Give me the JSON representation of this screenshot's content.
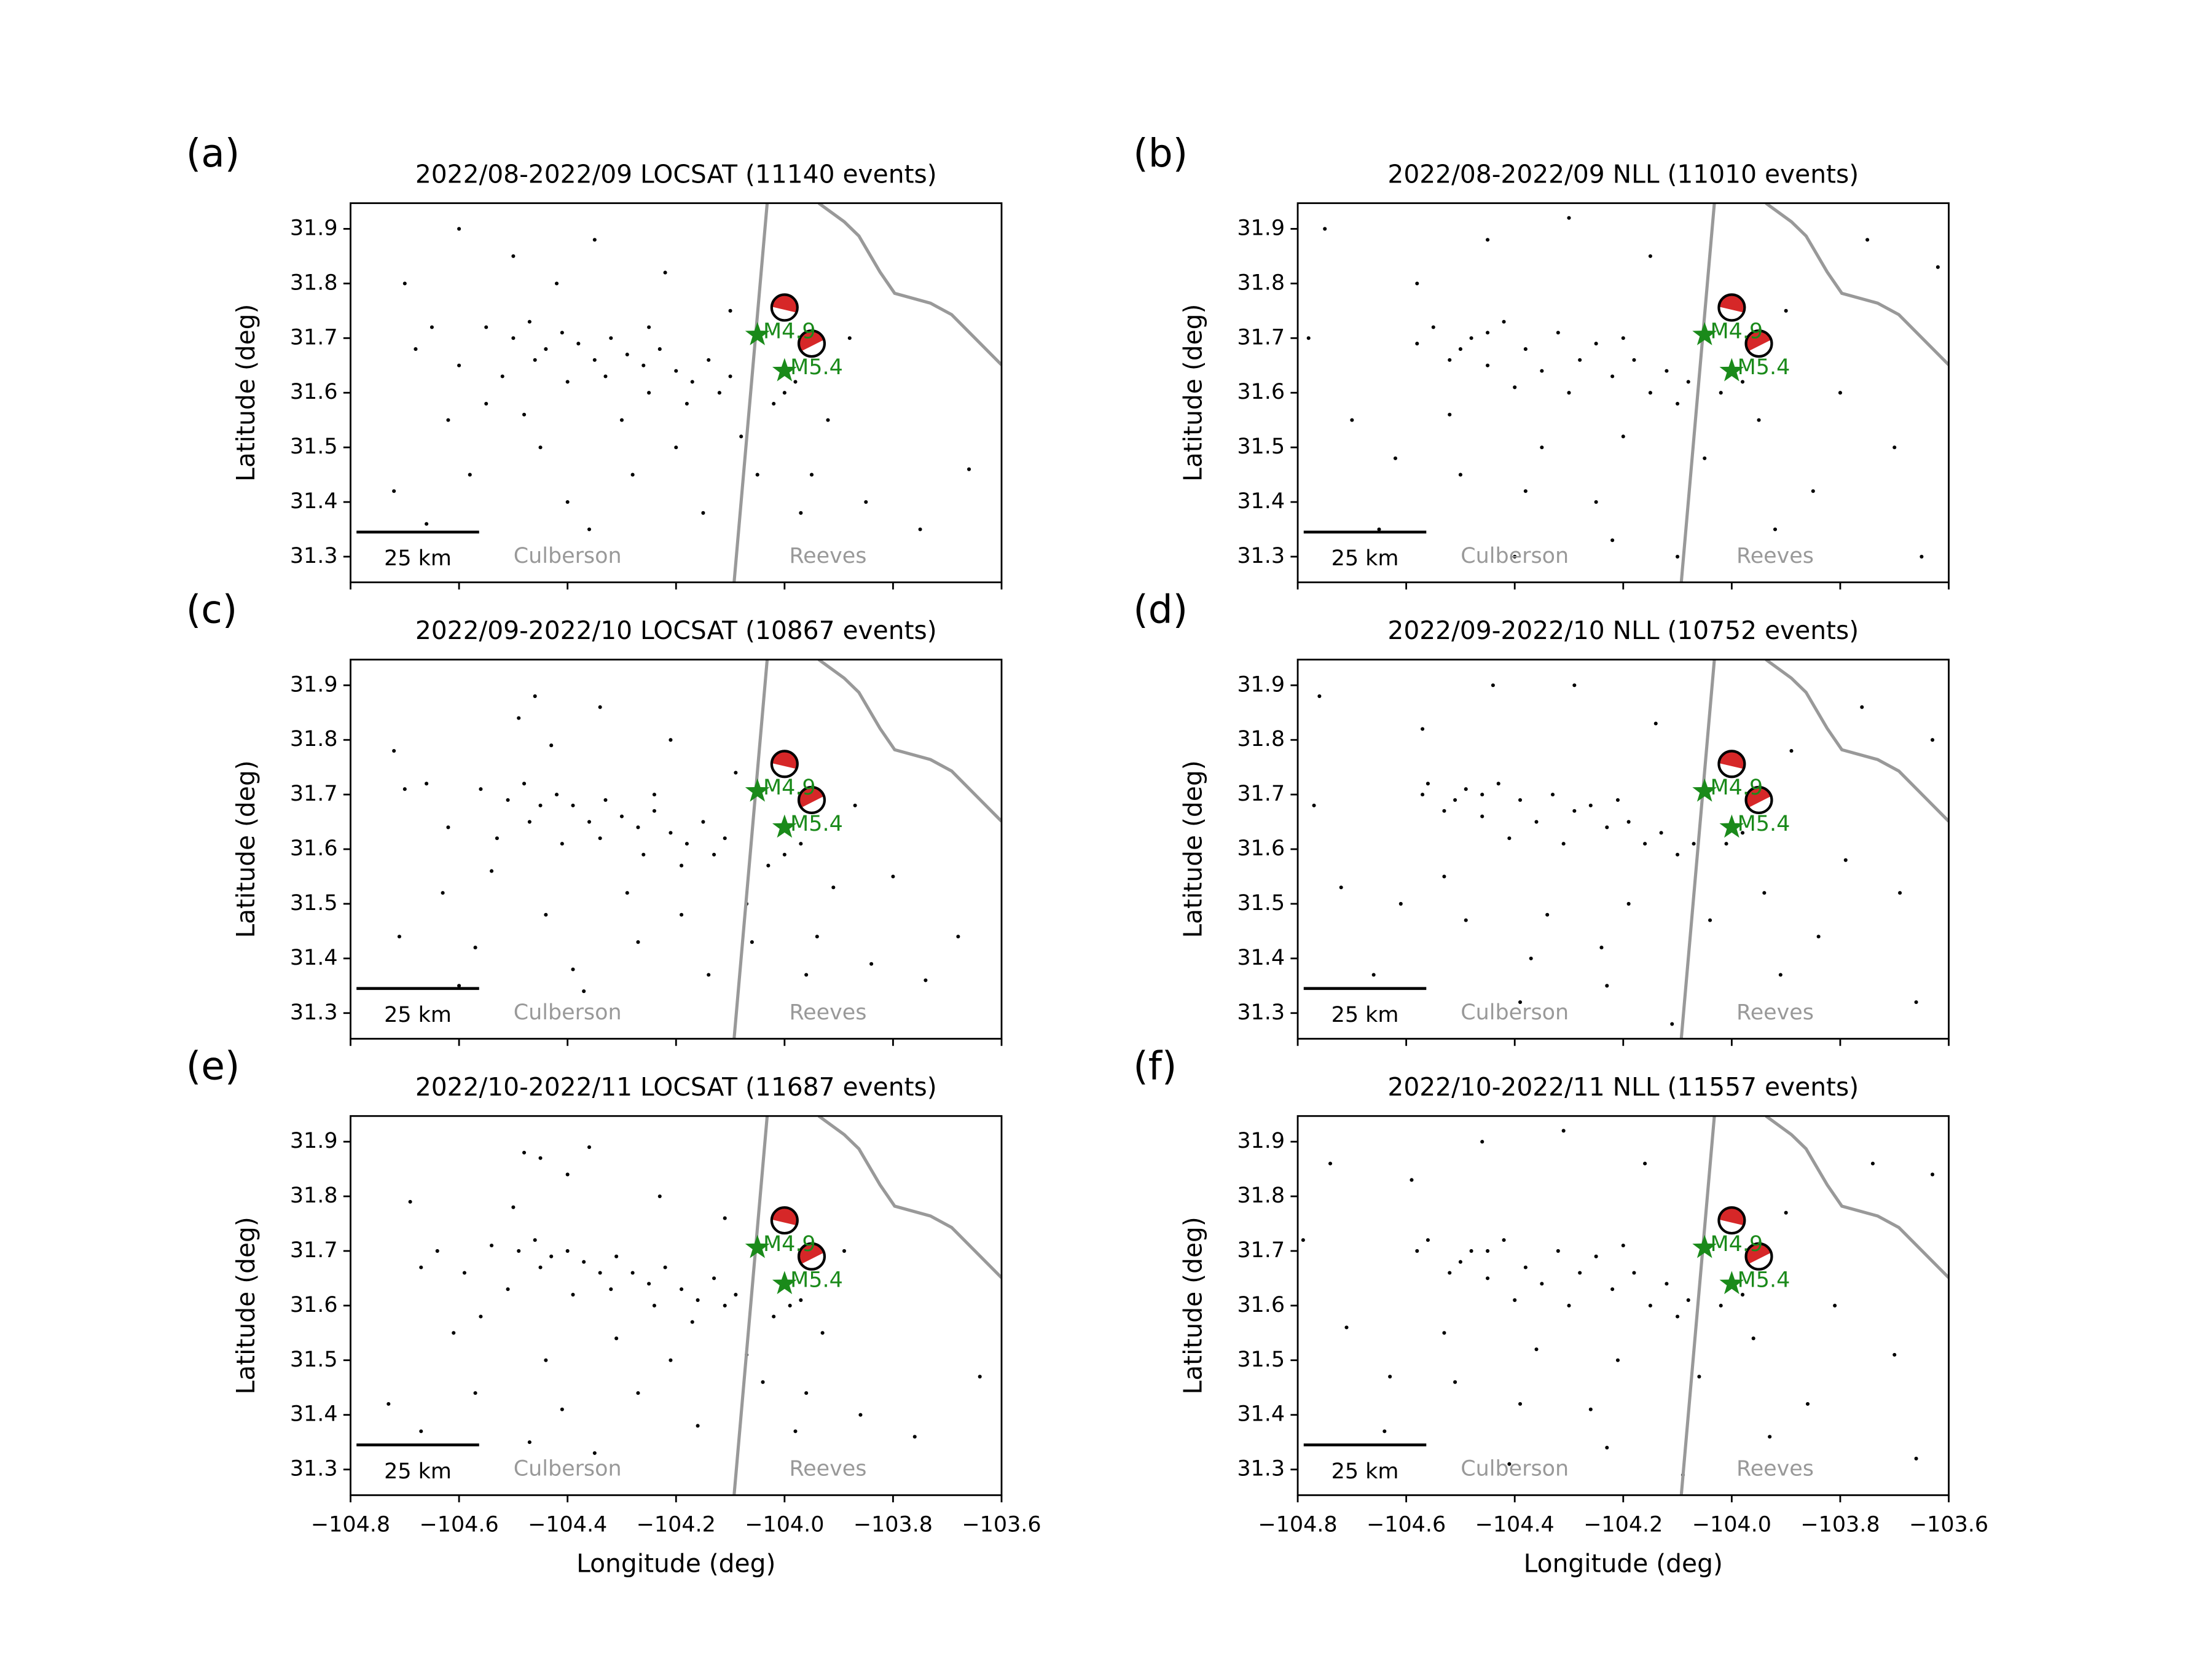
{
  "overlay": {
    "county_line": {
      "x": [
        -104.032,
        -104.093
      ],
      "y": [
        31.947,
        31.253
      ],
      "color": "#999999"
    },
    "state_line": {
      "x": [
        -103.937,
        -103.89,
        -103.863,
        -103.824,
        -103.797,
        -103.731,
        -103.692,
        -103.639,
        -103.6
      ],
      "y": [
        31.947,
        31.913,
        31.887,
        31.821,
        31.782,
        31.764,
        31.743,
        31.69,
        31.651
      ],
      "color": "#999999"
    },
    "stars": {
      "x": [
        -104.05,
        -104.0
      ],
      "y": [
        31.706,
        31.64
      ],
      "labels": [
        "M4.9",
        "M5.4"
      ],
      "color": "#1a8a1a"
    },
    "beachballs": {
      "x": [
        -104.0,
        -103.95
      ],
      "y": [
        31.756,
        31.69
      ],
      "color": "#d62728"
    },
    "scale_bar": {
      "x": [
        -104.789,
        -104.563
      ],
      "y": 31.345,
      "label": "25 km"
    },
    "counties": {
      "x": [
        -104.4,
        -103.92
      ],
      "y": 31.3,
      "labels": [
        "Culberson",
        "Reeves"
      ],
      "color": "#999999"
    }
  },
  "chart_data": [
    {
      "type": "scatter",
      "panel": "(a)",
      "title": "2022/08-2022/09 LOCSAT (11140 events)",
      "ylabel": "Latitude (deg)",
      "xlim": [
        -104.8,
        -103.6
      ],
      "ylim": [
        31.253,
        31.947
      ],
      "xticks": [
        -104.8,
        -104.6,
        -104.4,
        -104.2,
        -104.0,
        -103.8,
        -103.6
      ],
      "yticks": [
        31.3,
        31.4,
        31.5,
        31.6,
        31.7,
        31.8,
        31.9
      ],
      "color": "#000000",
      "x": [
        -104.55,
        -104.5,
        -104.47,
        -104.44,
        -104.41,
        -104.38,
        -104.35,
        -104.32,
        -104.29,
        -104.26,
        -104.23,
        -104.2,
        -104.17,
        -104.14,
        -104.12,
        -104.1,
        -104.6,
        -104.52,
        -104.46,
        -104.4,
        -104.33,
        -104.25,
        -104.18,
        -104.02,
        -104.0,
        -103.98,
        -104.65,
        -104.68,
        -104.7,
        -104.62,
        -104.58,
        -104.5,
        -104.45,
        -104.4,
        -104.35,
        -104.3,
        -104.28,
        -104.22,
        -104.2,
        -104.15,
        -104.1,
        -104.08,
        -103.95,
        -103.92,
        -103.88,
        -103.85,
        -103.75,
        -103.66,
        -104.72,
        -104.66,
        -104.55,
        -104.42,
        -104.36,
        -104.25,
        -104.05,
        -103.97,
        -104.6,
        -104.48
      ],
      "y": [
        31.72,
        31.7,
        31.73,
        31.68,
        31.71,
        31.69,
        31.66,
        31.7,
        31.67,
        31.65,
        31.68,
        31.64,
        31.62,
        31.66,
        31.6,
        31.63,
        31.65,
        31.63,
        31.66,
        31.62,
        31.63,
        31.6,
        31.58,
        31.58,
        31.6,
        31.62,
        31.72,
        31.68,
        31.8,
        31.55,
        31.45,
        31.85,
        31.5,
        31.4,
        31.88,
        31.55,
        31.45,
        31.82,
        31.5,
        31.38,
        31.75,
        31.52,
        31.45,
        31.55,
        31.7,
        31.4,
        31.35,
        31.46,
        31.42,
        31.36,
        31.58,
        31.8,
        31.35,
        31.72,
        31.45,
        31.38,
        31.9,
        31.56
      ]
    },
    {
      "type": "scatter",
      "panel": "(b)",
      "title": "2022/08-2022/09 NLL (11010 events)",
      "ylabel": "Latitude (deg)",
      "xlim": [
        -104.8,
        -103.6
      ],
      "ylim": [
        31.253,
        31.947
      ],
      "xticks": [
        -104.8,
        -104.6,
        -104.4,
        -104.2,
        -104.0,
        -103.8,
        -103.6
      ],
      "yticks": [
        31.3,
        31.4,
        31.5,
        31.6,
        31.7,
        31.8,
        31.9
      ],
      "color": "#000000",
      "x": [
        -104.55,
        -104.52,
        -104.48,
        -104.45,
        -104.42,
        -104.38,
        -104.35,
        -104.32,
        -104.28,
        -104.25,
        -104.22,
        -104.18,
        -104.15,
        -104.12,
        -104.1,
        -104.3,
        -104.4,
        -104.5,
        -104.58,
        -104.02,
        -103.98,
        -104.08,
        -104.2,
        -104.45,
        -104.75,
        -104.7,
        -104.65,
        -104.58,
        -104.5,
        -104.45,
        -104.4,
        -104.35,
        -104.3,
        -104.25,
        -104.2,
        -104.15,
        -104.1,
        -104.05,
        -103.95,
        -103.9,
        -103.85,
        -103.8,
        -103.75,
        -103.7,
        -103.65,
        -103.62,
        -104.78,
        -104.62,
        -104.38,
        -104.22,
        -103.92,
        -104.52
      ],
      "y": [
        31.72,
        31.66,
        31.7,
        31.65,
        31.73,
        31.68,
        31.64,
        31.71,
        31.66,
        31.69,
        31.63,
        31.66,
        31.6,
        31.64,
        31.58,
        31.6,
        31.61,
        31.68,
        31.69,
        31.6,
        31.62,
        31.62,
        31.7,
        31.71,
        31.9,
        31.55,
        31.35,
        31.8,
        31.45,
        31.88,
        31.3,
        31.5,
        31.92,
        31.4,
        31.52,
        31.85,
        31.3,
        31.48,
        31.55,
        31.75,
        31.42,
        31.6,
        31.88,
        31.5,
        31.3,
        31.83,
        31.7,
        31.48,
        31.42,
        31.33,
        31.35,
        31.56
      ]
    },
    {
      "type": "scatter",
      "panel": "(c)",
      "title": "2022/09-2022/10 LOCSAT (10867 events)",
      "ylabel": "Latitude (deg)",
      "xlim": [
        -104.8,
        -103.6
      ],
      "ylim": [
        31.253,
        31.947
      ],
      "xticks": [
        -104.8,
        -104.6,
        -104.4,
        -104.2,
        -104.0,
        -103.8,
        -103.6
      ],
      "yticks": [
        31.3,
        31.4,
        31.5,
        31.6,
        31.7,
        31.8,
        31.9
      ],
      "color": "#000000",
      "x": [
        -104.56,
        -104.51,
        -104.48,
        -104.45,
        -104.42,
        -104.39,
        -104.36,
        -104.33,
        -104.3,
        -104.27,
        -104.24,
        -104.21,
        -104.18,
        -104.15,
        -104.13,
        -104.11,
        -104.62,
        -104.53,
        -104.47,
        -104.41,
        -104.34,
        -104.26,
        -104.19,
        -104.03,
        -104.0,
        -103.97,
        -104.66,
        -104.7,
        -104.72,
        -104.63,
        -104.57,
        -104.49,
        -104.44,
        -104.39,
        -104.34,
        -104.29,
        -104.27,
        -104.21,
        -104.19,
        -104.14,
        -104.09,
        -104.07,
        -103.94,
        -103.91,
        -103.87,
        -103.84,
        -103.74,
        -103.68,
        -104.71,
        -104.6,
        -104.54,
        -104.43,
        -104.37,
        -104.24,
        -104.06,
        -103.96,
        -104.46,
        -103.8
      ],
      "y": [
        31.71,
        31.69,
        31.72,
        31.68,
        31.7,
        31.68,
        31.65,
        31.69,
        31.66,
        31.64,
        31.67,
        31.63,
        31.61,
        31.65,
        31.59,
        31.62,
        31.64,
        31.62,
        31.65,
        31.61,
        31.62,
        31.59,
        31.57,
        31.57,
        31.59,
        31.61,
        31.72,
        31.71,
        31.78,
        31.52,
        31.42,
        31.84,
        31.48,
        31.38,
        31.86,
        31.52,
        31.43,
        31.8,
        31.48,
        31.37,
        31.74,
        31.5,
        31.44,
        31.53,
        31.68,
        31.39,
        31.36,
        31.44,
        31.44,
        31.35,
        31.56,
        31.79,
        31.34,
        31.7,
        31.43,
        31.37,
        31.88,
        31.55
      ]
    },
    {
      "type": "scatter",
      "panel": "(d)",
      "title": "2022/09-2022/10 NLL (10752 events)",
      "ylabel": "Latitude (deg)",
      "xlim": [
        -104.8,
        -103.6
      ],
      "ylim": [
        31.253,
        31.947
      ],
      "xticks": [
        -104.8,
        -104.6,
        -104.4,
        -104.2,
        -104.0,
        -103.8,
        -103.6
      ],
      "yticks": [
        31.3,
        31.4,
        31.5,
        31.6,
        31.7,
        31.8,
        31.9
      ],
      "color": "#000000",
      "x": [
        -104.56,
        -104.53,
        -104.49,
        -104.46,
        -104.43,
        -104.39,
        -104.36,
        -104.33,
        -104.29,
        -104.26,
        -104.23,
        -104.19,
        -104.16,
        -104.13,
        -104.1,
        -104.31,
        -104.41,
        -104.51,
        -104.57,
        -104.01,
        -103.98,
        -104.07,
        -104.21,
        -104.46,
        -104.76,
        -104.72,
        -104.66,
        -104.57,
        -104.49,
        -104.44,
        -104.39,
        -104.34,
        -104.29,
        -104.24,
        -104.19,
        -104.14,
        -104.11,
        -104.04,
        -103.94,
        -103.89,
        -103.84,
        -103.79,
        -103.76,
        -103.69,
        -103.66,
        -103.63,
        -104.77,
        -104.61,
        -104.37,
        -104.23,
        -103.91,
        -104.53
      ],
      "y": [
        31.72,
        31.67,
        31.71,
        31.66,
        31.72,
        31.69,
        31.65,
        31.7,
        31.67,
        31.68,
        31.64,
        31.65,
        31.61,
        31.63,
        31.59,
        31.61,
        31.62,
        31.69,
        31.7,
        31.61,
        31.63,
        31.61,
        31.69,
        31.7,
        31.88,
        31.53,
        31.37,
        31.82,
        31.47,
        31.9,
        31.32,
        31.48,
        31.9,
        31.42,
        31.5,
        31.83,
        31.28,
        31.47,
        31.52,
        31.78,
        31.44,
        31.58,
        31.86,
        31.52,
        31.32,
        31.8,
        31.68,
        31.5,
        31.4,
        31.35,
        31.37,
        31.55
      ]
    },
    {
      "type": "scatter",
      "panel": "(e)",
      "title": "2022/10-2022/11 LOCSAT (11687 events)",
      "ylabel": "Latitude (deg)",
      "xlabel": "Longitude (deg)",
      "xlim": [
        -104.8,
        -103.6
      ],
      "ylim": [
        31.253,
        31.947
      ],
      "xticks": [
        {
          "value": -104.8,
          "label": "−104.8"
        },
        {
          "value": -104.6,
          "label": "−104.6"
        },
        {
          "value": -104.4,
          "label": "−104.4"
        },
        {
          "value": -104.2,
          "label": "−104.2"
        },
        {
          "value": -104.0,
          "label": "−104.0"
        },
        {
          "value": -103.8,
          "label": "−103.8"
        },
        {
          "value": -103.6,
          "label": "−103.6"
        }
      ],
      "yticks": [
        31.3,
        31.4,
        31.5,
        31.6,
        31.7,
        31.8,
        31.9
      ],
      "color": "#000000",
      "x": [
        -104.54,
        -104.49,
        -104.46,
        -104.43,
        -104.4,
        -104.37,
        -104.34,
        -104.31,
        -104.28,
        -104.25,
        -104.22,
        -104.19,
        -104.16,
        -104.13,
        -104.11,
        -104.09,
        -104.59,
        -104.51,
        -104.45,
        -104.39,
        -104.32,
        -104.24,
        -104.17,
        -104.02,
        -103.99,
        -103.97,
        -104.64,
        -104.67,
        -104.69,
        -104.61,
        -104.57,
        -104.48,
        -104.44,
        -104.41,
        -104.36,
        -104.31,
        -104.27,
        -104.23,
        -104.21,
        -104.16,
        -104.11,
        -104.07,
        -103.96,
        -103.93,
        -103.89,
        -103.86,
        -103.76,
        -103.64,
        -104.73,
        -104.67,
        -104.56,
        -104.4,
        -104.35,
        -104.45,
        -104.04,
        -103.98,
        -104.5,
        -104.47
      ],
      "y": [
        31.71,
        31.7,
        31.72,
        31.69,
        31.7,
        31.68,
        31.66,
        31.69,
        31.66,
        31.64,
        31.67,
        31.63,
        31.61,
        31.65,
        31.6,
        31.62,
        31.66,
        31.63,
        31.67,
        31.62,
        31.63,
        31.6,
        31.57,
        31.58,
        31.6,
        31.61,
        31.7,
        31.67,
        31.79,
        31.55,
        31.44,
        31.88,
        31.5,
        31.41,
        31.89,
        31.54,
        31.44,
        31.8,
        31.5,
        31.38,
        31.76,
        31.51,
        31.44,
        31.55,
        31.7,
        31.4,
        31.36,
        31.47,
        31.42,
        31.37,
        31.58,
        31.84,
        31.33,
        31.87,
        31.46,
        31.37,
        31.78,
        31.35
      ]
    },
    {
      "type": "scatter",
      "panel": "(f)",
      "title": "2022/10-2022/11 NLL (11557 events)",
      "ylabel": "Latitude (deg)",
      "xlabel": "Longitude (deg)",
      "xlim": [
        -104.8,
        -103.6
      ],
      "ylim": [
        31.253,
        31.947
      ],
      "xticks": [
        {
          "value": -104.8,
          "label": "−104.8"
        },
        {
          "value": -104.6,
          "label": "−104.6"
        },
        {
          "value": -104.4,
          "label": "−104.4"
        },
        {
          "value": -104.2,
          "label": "−104.2"
        },
        {
          "value": -104.0,
          "label": "−104.0"
        },
        {
          "value": -103.8,
          "label": "−103.8"
        },
        {
          "value": -103.6,
          "label": "−103.6"
        }
      ],
      "yticks": [
        31.3,
        31.4,
        31.5,
        31.6,
        31.7,
        31.8,
        31.9
      ],
      "color": "#000000",
      "x": [
        -104.56,
        -104.52,
        -104.48,
        -104.45,
        -104.42,
        -104.38,
        -104.35,
        -104.32,
        -104.28,
        -104.25,
        -104.22,
        -104.18,
        -104.15,
        -104.12,
        -104.1,
        -104.3,
        -104.4,
        -104.5,
        -104.58,
        -104.02,
        -103.98,
        -104.08,
        -104.2,
        -104.45,
        -104.74,
        -104.71,
        -104.64,
        -104.59,
        -104.51,
        -104.46,
        -104.41,
        -104.36,
        -104.31,
        -104.26,
        -104.21,
        -104.16,
        -104.09,
        -104.06,
        -103.96,
        -103.9,
        -103.86,
        -103.81,
        -103.74,
        -103.7,
        -103.66,
        -103.63,
        -104.79,
        -104.63,
        -104.39,
        -104.23,
        -103.93,
        -104.53
      ],
      "y": [
        31.72,
        31.66,
        31.7,
        31.65,
        31.72,
        31.67,
        31.64,
        31.7,
        31.66,
        31.69,
        31.63,
        31.66,
        31.6,
        31.64,
        31.58,
        31.6,
        31.61,
        31.68,
        31.7,
        31.6,
        31.62,
        31.61,
        31.71,
        31.7,
        31.86,
        31.56,
        31.37,
        31.83,
        31.46,
        31.9,
        31.31,
        31.52,
        31.92,
        31.41,
        31.5,
        31.86,
        31.29,
        31.47,
        31.54,
        31.77,
        31.42,
        31.6,
        31.86,
        31.51,
        31.32,
        31.84,
        31.72,
        31.47,
        31.42,
        31.34,
        31.36,
        31.55
      ]
    }
  ]
}
